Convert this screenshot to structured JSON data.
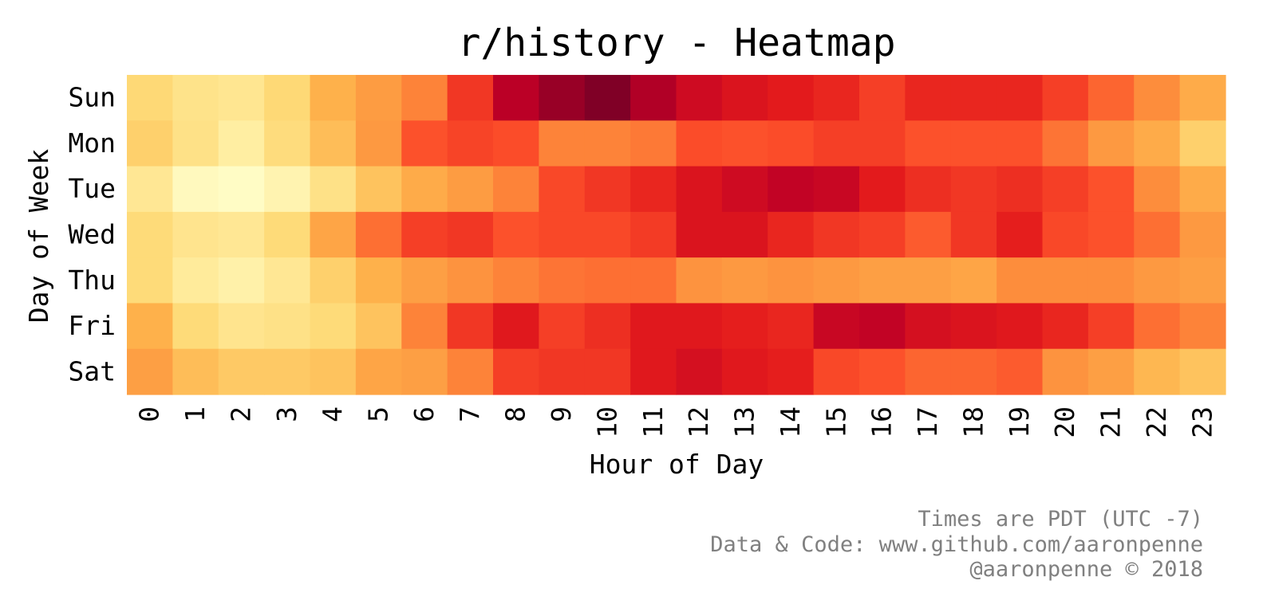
{
  "chart_data": {
    "type": "heatmap",
    "title": "r/history - Heatmap",
    "xlabel": "Hour of Day",
    "ylabel": "Day of Week",
    "x": [
      "0",
      "1",
      "2",
      "3",
      "4",
      "5",
      "6",
      "7",
      "8",
      "9",
      "10",
      "11",
      "12",
      "13",
      "14",
      "15",
      "16",
      "17",
      "18",
      "19",
      "20",
      "21",
      "22",
      "23"
    ],
    "y": [
      "Sun",
      "Mon",
      "Tue",
      "Wed",
      "Thu",
      "Fri",
      "Sat"
    ],
    "colormap": "YlOrRd",
    "grid": false,
    "legend": "none",
    "values": [
      [
        0.25,
        0.19,
        0.17,
        0.25,
        0.38,
        0.45,
        0.52,
        0.68,
        0.88,
        0.95,
        1.0,
        0.9,
        0.82,
        0.78,
        0.75,
        0.72,
        0.66,
        0.72,
        0.72,
        0.72,
        0.66,
        0.58,
        0.5,
        0.4
      ],
      [
        0.28,
        0.2,
        0.12,
        0.23,
        0.34,
        0.46,
        0.62,
        0.65,
        0.63,
        0.52,
        0.52,
        0.54,
        0.63,
        0.62,
        0.63,
        0.66,
        0.66,
        0.62,
        0.62,
        0.62,
        0.55,
        0.46,
        0.4,
        0.28
      ],
      [
        0.16,
        0.04,
        0.02,
        0.08,
        0.2,
        0.32,
        0.4,
        0.45,
        0.52,
        0.64,
        0.68,
        0.72,
        0.78,
        0.82,
        0.86,
        0.84,
        0.75,
        0.7,
        0.68,
        0.7,
        0.66,
        0.62,
        0.5,
        0.4
      ],
      [
        0.24,
        0.18,
        0.16,
        0.24,
        0.42,
        0.56,
        0.66,
        0.68,
        0.62,
        0.64,
        0.64,
        0.67,
        0.78,
        0.78,
        0.72,
        0.68,
        0.66,
        0.6,
        0.68,
        0.74,
        0.64,
        0.62,
        0.56,
        0.46
      ],
      [
        0.24,
        0.14,
        0.1,
        0.16,
        0.28,
        0.38,
        0.44,
        0.48,
        0.52,
        0.55,
        0.56,
        0.56,
        0.48,
        0.46,
        0.48,
        0.46,
        0.44,
        0.44,
        0.42,
        0.5,
        0.5,
        0.5,
        0.46,
        0.44
      ],
      [
        0.38,
        0.24,
        0.18,
        0.2,
        0.24,
        0.32,
        0.52,
        0.68,
        0.76,
        0.66,
        0.7,
        0.76,
        0.76,
        0.74,
        0.72,
        0.84,
        0.86,
        0.8,
        0.78,
        0.76,
        0.72,
        0.66,
        0.56,
        0.52
      ],
      [
        0.44,
        0.34,
        0.3,
        0.3,
        0.32,
        0.42,
        0.44,
        0.52,
        0.66,
        0.68,
        0.68,
        0.76,
        0.8,
        0.76,
        0.74,
        0.64,
        0.62,
        0.58,
        0.58,
        0.6,
        0.48,
        0.44,
        0.36,
        0.32
      ]
    ]
  },
  "footer": {
    "line1": "Times are PDT (UTC -7)",
    "line2": "Data & Code: www.github.com/aaronpenne",
    "line3": "@aaronpenne © 2018"
  }
}
